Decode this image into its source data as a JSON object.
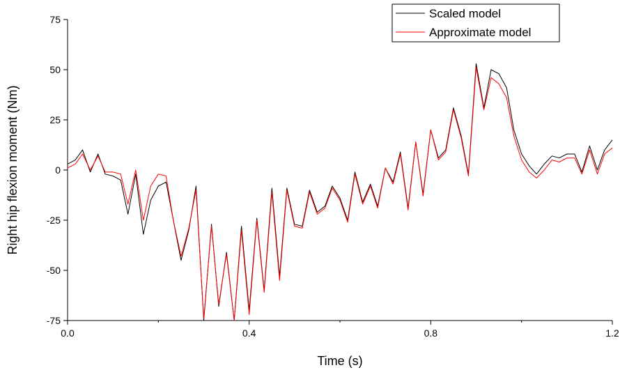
{
  "chart_data": {
    "type": "line",
    "title": "",
    "xlabel": "Time (s)",
    "ylabel": "Right hip flexion moment (Nm)",
    "xlim": [
      0,
      1.2
    ],
    "ylim": [
      -75,
      75
    ],
    "x_ticks": [
      0.0,
      0.4,
      0.8,
      1.2
    ],
    "x_tick_labels": [
      "0.0",
      "0.4",
      "0.8",
      "1.2"
    ],
    "y_ticks": [
      -75,
      -50,
      -25,
      0,
      25,
      50,
      75
    ],
    "y_tick_labels": [
      "-75",
      "-50",
      "-25",
      "0",
      "25",
      "50",
      "75"
    ],
    "grid": false,
    "legend_position": "top-right",
    "series": [
      {
        "name": "Scaled model",
        "color": "#000000",
        "x": [
          0.0,
          0.017,
          0.033,
          0.05,
          0.067,
          0.083,
          0.1,
          0.117,
          0.133,
          0.15,
          0.167,
          0.183,
          0.2,
          0.217,
          0.233,
          0.25,
          0.267,
          0.283,
          0.3,
          0.317,
          0.333,
          0.35,
          0.367,
          0.383,
          0.4,
          0.417,
          0.433,
          0.45,
          0.467,
          0.483,
          0.5,
          0.517,
          0.533,
          0.55,
          0.567,
          0.583,
          0.6,
          0.617,
          0.633,
          0.65,
          0.667,
          0.683,
          0.7,
          0.717,
          0.733,
          0.75,
          0.767,
          0.783,
          0.8,
          0.817,
          0.833,
          0.85,
          0.867,
          0.883,
          0.9,
          0.917,
          0.933,
          0.95,
          0.967,
          0.983,
          1.0,
          1.017,
          1.033,
          1.05,
          1.067,
          1.083,
          1.1,
          1.117,
          1.133,
          1.15,
          1.167,
          1.183,
          1.2
        ],
        "values": [
          3,
          5,
          10,
          -1,
          8,
          -2,
          -3,
          -5,
          -22,
          -2,
          -32,
          -15,
          -8,
          -6,
          -25,
          -45,
          -30,
          -8,
          -75,
          -27,
          -68,
          -41,
          -75,
          -28,
          -70,
          -24,
          -60,
          -9,
          -53,
          -9,
          -27,
          -28,
          -10,
          -21,
          -18,
          -8,
          -14,
          -25,
          -1,
          -16,
          -7,
          -18,
          1,
          -6,
          9,
          -19,
          14,
          -12,
          20,
          6,
          10,
          31,
          17,
          -2,
          53,
          31,
          50,
          48,
          41,
          20,
          8,
          2,
          -2,
          3,
          7,
          6,
          8,
          8,
          -1,
          12,
          0,
          10,
          15
        ]
      },
      {
        "name": "Approximate model",
        "color": "#ff0000",
        "x": [
          0.0,
          0.017,
          0.033,
          0.05,
          0.067,
          0.083,
          0.1,
          0.117,
          0.133,
          0.15,
          0.167,
          0.183,
          0.2,
          0.217,
          0.233,
          0.25,
          0.267,
          0.283,
          0.3,
          0.317,
          0.333,
          0.35,
          0.367,
          0.383,
          0.4,
          0.417,
          0.433,
          0.45,
          0.467,
          0.483,
          0.5,
          0.517,
          0.533,
          0.55,
          0.567,
          0.583,
          0.6,
          0.617,
          0.633,
          0.65,
          0.667,
          0.683,
          0.7,
          0.717,
          0.733,
          0.75,
          0.767,
          0.783,
          0.8,
          0.817,
          0.833,
          0.85,
          0.867,
          0.883,
          0.9,
          0.917,
          0.933,
          0.95,
          0.967,
          0.983,
          1.0,
          1.017,
          1.033,
          1.05,
          1.067,
          1.083,
          1.1,
          1.117,
          1.133,
          1.15,
          1.167,
          1.183,
          1.2
        ],
        "values": [
          1,
          3,
          8,
          0,
          7,
          -1,
          -1,
          -2,
          -17,
          0,
          -25,
          -8,
          -2,
          -3,
          -25,
          -43,
          -29,
          -10,
          -74,
          -28,
          -67,
          -42,
          -76,
          -30,
          -72,
          -25,
          -61,
          -11,
          -55,
          -10,
          -28,
          -29,
          -11,
          -22,
          -19,
          -9,
          -15,
          -26,
          -2,
          -17,
          -8,
          -19,
          1,
          -7,
          8,
          -20,
          14,
          -13,
          20,
          5,
          9,
          30,
          16,
          -3,
          51,
          30,
          46,
          43,
          36,
          17,
          5,
          -1,
          -4,
          0,
          5,
          4,
          6,
          6,
          -2,
          10,
          -2,
          8,
          11
        ]
      }
    ]
  }
}
